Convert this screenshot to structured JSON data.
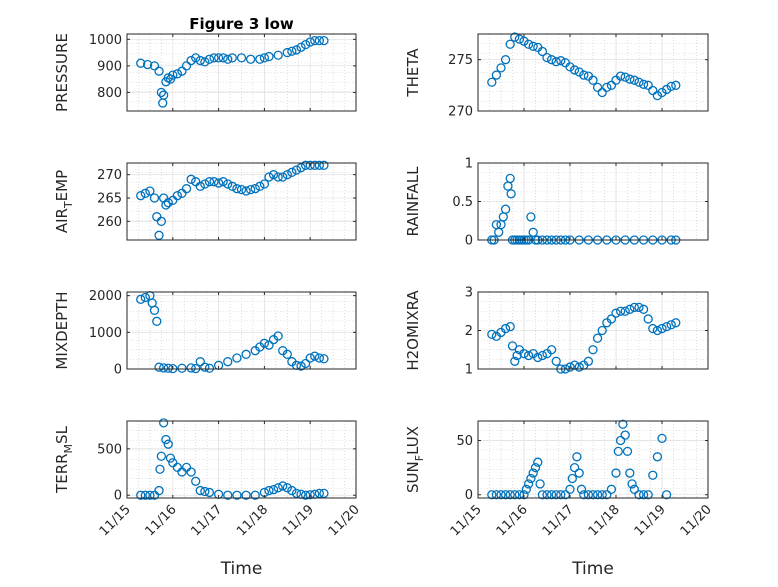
{
  "chart_data": [
    {
      "type": "scatter",
      "title": "Figure 3 low",
      "ylabel": "PRESSURE",
      "xlabel": "",
      "xlim": [
        0,
        5
      ],
      "ylim": [
        730,
        1020
      ],
      "yticks": [
        800,
        900,
        1000
      ],
      "xticklabels": [],
      "x": [
        0.3,
        0.45,
        0.6,
        0.7,
        0.75,
        0.78,
        0.8,
        0.85,
        0.9,
        0.95,
        1.0,
        1.1,
        1.2,
        1.3,
        1.4,
        1.5,
        1.6,
        1.7,
        1.8,
        1.9,
        2.0,
        2.1,
        2.2,
        2.3,
        2.5,
        2.7,
        2.9,
        3.0,
        3.1,
        3.3,
        3.5,
        3.6,
        3.7,
        3.8,
        3.9,
        4.0,
        4.1,
        4.2,
        4.3
      ],
      "y": [
        910,
        905,
        900,
        880,
        800,
        760,
        790,
        840,
        855,
        850,
        865,
        870,
        880,
        900,
        920,
        930,
        920,
        915,
        925,
        930,
        930,
        930,
        925,
        930,
        930,
        925,
        925,
        930,
        935,
        940,
        950,
        955,
        960,
        970,
        980,
        990,
        995,
        995,
        995
      ]
    },
    {
      "type": "scatter",
      "title": "",
      "ylabel": "THETA",
      "xlim": [
        0,
        5
      ],
      "ylim": [
        270,
        277.5
      ],
      "yticks": [
        270,
        275
      ],
      "xticklabels": [],
      "x": [
        0.3,
        0.4,
        0.5,
        0.6,
        0.7,
        0.8,
        0.9,
        1.0,
        1.1,
        1.2,
        1.3,
        1.4,
        1.5,
        1.6,
        1.7,
        1.8,
        1.9,
        2.0,
        2.1,
        2.2,
        2.3,
        2.4,
        2.5,
        2.6,
        2.7,
        2.8,
        2.9,
        3.0,
        3.1,
        3.2,
        3.3,
        3.4,
        3.5,
        3.6,
        3.7,
        3.8,
        3.9,
        4.0,
        4.1,
        4.2,
        4.3
      ],
      "y": [
        272.8,
        273.5,
        274.2,
        275,
        276.5,
        277.2,
        277,
        276.8,
        276.5,
        276.3,
        276.2,
        275.8,
        275.2,
        275,
        274.8,
        274.9,
        274.7,
        274.3,
        274,
        273.8,
        273.5,
        273.4,
        273,
        272.3,
        271.8,
        272.3,
        272.5,
        273,
        273.4,
        273.3,
        273.1,
        273,
        272.8,
        272.6,
        272.5,
        272.0,
        271.5,
        271.8,
        272.1,
        272.4,
        272.5
      ]
    },
    {
      "type": "scatter",
      "title": "",
      "ylabel": "AIR_TEMP",
      "xlim": [
        0,
        5
      ],
      "ylim": [
        256,
        272.5
      ],
      "yticks": [
        260,
        265,
        270
      ],
      "xticklabels": [],
      "x": [
        0.3,
        0.4,
        0.5,
        0.6,
        0.65,
        0.7,
        0.75,
        0.8,
        0.85,
        0.9,
        1.0,
        1.1,
        1.2,
        1.3,
        1.4,
        1.5,
        1.6,
        1.7,
        1.8,
        1.9,
        2.0,
        2.1,
        2.2,
        2.3,
        2.4,
        2.5,
        2.6,
        2.7,
        2.8,
        2.9,
        3.0,
        3.1,
        3.2,
        3.3,
        3.4,
        3.5,
        3.6,
        3.7,
        3.8,
        3.9,
        4.0,
        4.1,
        4.2,
        4.3
      ],
      "y": [
        265.5,
        266,
        266.5,
        265,
        261,
        257,
        260,
        265,
        263.5,
        264,
        264.5,
        265.5,
        266,
        267,
        269,
        268.5,
        267.5,
        268,
        268.5,
        268.5,
        268.2,
        268.5,
        268,
        267.5,
        267,
        266.8,
        266.5,
        266.8,
        267,
        267.5,
        268,
        269.5,
        270,
        269.5,
        269.5,
        270,
        270.5,
        271,
        271.5,
        272,
        272,
        272,
        272,
        272
      ]
    },
    {
      "type": "scatter",
      "title": "",
      "ylabel": "RAINFALL",
      "xlim": [
        0,
        5
      ],
      "ylim": [
        0,
        1
      ],
      "yticks": [
        0,
        0.5,
        1
      ],
      "xticklabels": [],
      "x": [
        0.3,
        0.35,
        0.4,
        0.45,
        0.5,
        0.55,
        0.6,
        0.65,
        0.7,
        0.72,
        0.75,
        0.8,
        0.85,
        0.9,
        0.95,
        1.0,
        1.05,
        1.1,
        1.15,
        1.2,
        1.25,
        1.3,
        1.4,
        1.5,
        1.6,
        1.7,
        1.8,
        1.9,
        2.0,
        2.2,
        2.4,
        2.6,
        2.8,
        3.0,
        3.2,
        3.4,
        3.6,
        3.8,
        4.0,
        4.2,
        4.3
      ],
      "y": [
        0,
        0,
        0.2,
        0.1,
        0.2,
        0.3,
        0.4,
        0.7,
        0.8,
        0.6,
        0,
        0,
        0,
        0,
        0,
        0,
        0,
        0,
        0.3,
        0.1,
        0,
        0,
        0,
        0,
        0,
        0,
        0,
        0,
        0,
        0,
        0,
        0,
        0,
        0,
        0,
        0,
        0,
        0,
        0,
        0,
        0
      ]
    },
    {
      "type": "scatter",
      "title": "",
      "ylabel": "MIXDEPTH",
      "xlim": [
        0,
        5
      ],
      "ylim": [
        0,
        2100
      ],
      "yticks": [
        0,
        1000,
        2000
      ],
      "xticklabels": [],
      "x": [
        0.3,
        0.4,
        0.5,
        0.55,
        0.6,
        0.65,
        0.7,
        0.8,
        0.9,
        1.0,
        1.2,
        1.4,
        1.5,
        1.6,
        1.7,
        1.8,
        2.0,
        2.2,
        2.4,
        2.6,
        2.8,
        2.9,
        3.0,
        3.1,
        3.2,
        3.3,
        3.4,
        3.5,
        3.6,
        3.7,
        3.8,
        3.9,
        4.0,
        4.1,
        4.2,
        4.3
      ],
      "y": [
        1900,
        1950,
        2000,
        1800,
        1600,
        1300,
        50,
        30,
        20,
        10,
        20,
        30,
        10,
        200,
        50,
        20,
        100,
        200,
        300,
        400,
        500,
        600,
        700,
        650,
        800,
        900,
        500,
        400,
        200,
        100,
        80,
        150,
        300,
        350,
        300,
        280
      ]
    },
    {
      "type": "scatter",
      "title": "",
      "ylabel": "H2OMIXRA",
      "xlim": [
        0,
        5
      ],
      "ylim": [
        1,
        3
      ],
      "yticks": [
        1,
        2,
        3
      ],
      "xticklabels": [],
      "x": [
        0.3,
        0.4,
        0.5,
        0.6,
        0.7,
        0.75,
        0.8,
        0.85,
        0.9,
        1.0,
        1.1,
        1.2,
        1.3,
        1.4,
        1.5,
        1.6,
        1.7,
        1.8,
        1.9,
        2.0,
        2.1,
        2.2,
        2.3,
        2.4,
        2.5,
        2.6,
        2.7,
        2.8,
        2.9,
        3.0,
        3.1,
        3.2,
        3.3,
        3.4,
        3.5,
        3.6,
        3.7,
        3.8,
        3.9,
        4.0,
        4.1,
        4.2,
        4.3
      ],
      "y": [
        1.9,
        1.85,
        1.95,
        2.05,
        2.1,
        1.6,
        1.2,
        1.35,
        1.5,
        1.4,
        1.35,
        1.4,
        1.3,
        1.35,
        1.4,
        1.5,
        1.2,
        1.0,
        1.0,
        1.05,
        1.1,
        1.05,
        1.1,
        1.2,
        1.5,
        1.8,
        2.0,
        2.2,
        2.3,
        2.45,
        2.5,
        2.5,
        2.55,
        2.6,
        2.6,
        2.55,
        2.3,
        2.05,
        2.0,
        2.05,
        2.1,
        2.15,
        2.2
      ]
    },
    {
      "type": "scatter",
      "title": "",
      "ylabel": "TERR_MSL",
      "xlabel": "Time",
      "xlim": [
        0,
        5
      ],
      "ylim": [
        -30,
        800
      ],
      "yticks": [
        0,
        500
      ],
      "xticklabels": [
        "11/15",
        "11/16",
        "11/17",
        "11/18",
        "11/19",
        "11/20"
      ],
      "x": [
        0.3,
        0.4,
        0.5,
        0.6,
        0.7,
        0.72,
        0.75,
        0.8,
        0.85,
        0.9,
        0.95,
        1.0,
        1.1,
        1.2,
        1.3,
        1.4,
        1.5,
        1.6,
        1.7,
        1.8,
        2.0,
        2.2,
        2.4,
        2.6,
        2.8,
        3.0,
        3.1,
        3.2,
        3.3,
        3.4,
        3.5,
        3.6,
        3.7,
        3.8,
        3.9,
        4.0,
        4.1,
        4.2,
        4.3
      ],
      "y": [
        0,
        0,
        0,
        0,
        50,
        280,
        420,
        780,
        600,
        550,
        400,
        350,
        300,
        250,
        300,
        250,
        150,
        50,
        40,
        30,
        10,
        0,
        0,
        0,
        0,
        30,
        50,
        60,
        80,
        100,
        80,
        50,
        20,
        10,
        0,
        5,
        10,
        20,
        20
      ]
    },
    {
      "type": "scatter",
      "title": "",
      "ylabel": "SUN_FLUX",
      "xlabel": "Time",
      "xlim": [
        0,
        5
      ],
      "ylim": [
        -3,
        68
      ],
      "yticks": [
        0,
        50
      ],
      "xticklabels": [
        "11/15",
        "11/16",
        "11/17",
        "11/18",
        "11/19",
        "11/20"
      ],
      "x": [
        0.3,
        0.4,
        0.5,
        0.6,
        0.7,
        0.8,
        0.9,
        1.0,
        1.05,
        1.1,
        1.15,
        1.2,
        1.25,
        1.3,
        1.35,
        1.4,
        1.5,
        1.6,
        1.7,
        1.8,
        1.9,
        2.0,
        2.05,
        2.1,
        2.15,
        2.2,
        2.25,
        2.3,
        2.4,
        2.5,
        2.6,
        2.7,
        2.8,
        2.9,
        3.0,
        3.05,
        3.1,
        3.15,
        3.2,
        3.25,
        3.3,
        3.35,
        3.4,
        3.5,
        3.6,
        3.7,
        3.8,
        3.9,
        4.0,
        4.1
      ],
      "y": [
        0,
        0,
        0,
        0,
        0,
        0,
        0,
        0,
        5,
        10,
        15,
        20,
        25,
        30,
        10,
        0,
        0,
        0,
        0,
        0,
        0,
        5,
        15,
        25,
        35,
        20,
        5,
        0,
        0,
        0,
        0,
        0,
        0,
        5,
        20,
        40,
        50,
        65,
        55,
        40,
        20,
        10,
        5,
        0,
        0,
        0,
        18,
        35,
        52,
        0
      ]
    }
  ]
}
